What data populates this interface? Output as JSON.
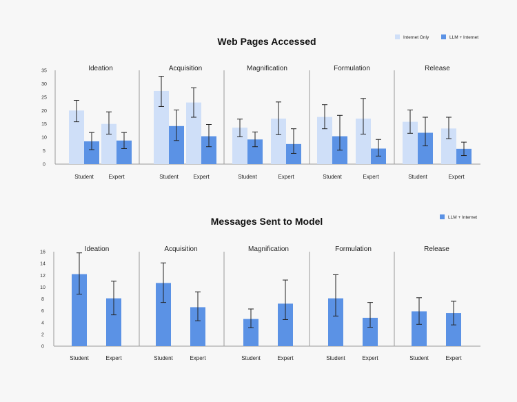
{
  "colors": {
    "internet_only": "#cfdff8",
    "llm_internet": "#5b92e5",
    "axis": "#888888",
    "text": "#111111"
  },
  "chart_data": [
    {
      "type": "bar",
      "title": "Web Pages Accessed",
      "legend": [
        "Internet Only",
        "LLM + Internet"
      ],
      "legend_position": "top-right",
      "ylim": [
        0,
        35
      ],
      "yticks": [
        0,
        5,
        10,
        15,
        20,
        25,
        30,
        35
      ],
      "panels": [
        "Ideation",
        "Acquisition",
        "Magnification",
        "Formulation",
        "Release"
      ],
      "categories": [
        "Student",
        "Expert"
      ],
      "series": [
        {
          "name": "Internet Only",
          "values": [
            [
              20,
              15
            ],
            [
              27.3,
              23
            ],
            [
              13.6,
              17
            ],
            [
              17.6,
              17
            ],
            [
              15.8,
              13.3
            ]
          ],
          "err_low": [
            [
              15.8,
              11.2
            ],
            [
              21.5,
              17.5
            ],
            [
              10.2,
              11
            ],
            [
              13.2,
              11.2
            ],
            [
              11.5,
              9.5
            ]
          ],
          "err_high": [
            [
              23.8,
              19.5
            ],
            [
              32.8,
              28.5
            ],
            [
              16.8,
              23.2
            ],
            [
              22.2,
              24.5
            ],
            [
              20.2,
              17.5
            ]
          ]
        },
        {
          "name": "LLM + Internet",
          "values": [
            [
              8.5,
              8.8
            ],
            [
              14.2,
              10.4
            ],
            [
              9.2,
              7.5
            ],
            [
              10.4,
              5.8
            ],
            [
              11.7,
              5.7
            ]
          ],
          "err_low": [
            [
              5.4,
              5.8
            ],
            [
              8.8,
              6.5
            ],
            [
              6.5,
              4
            ],
            [
              5.2,
              3
            ],
            [
              6.8,
              3.2
            ]
          ],
          "err_high": [
            [
              11.8,
              11.8
            ],
            [
              20.2,
              14.8
            ],
            [
              12,
              13.2
            ],
            [
              18.2,
              9.2
            ],
            [
              17.5,
              8.2
            ]
          ]
        }
      ]
    },
    {
      "type": "bar",
      "title": "Messages Sent to Model",
      "legend": [
        "LLM + Internet"
      ],
      "legend_position": "top-right",
      "ylim": [
        0,
        16
      ],
      "yticks": [
        0,
        2,
        4,
        6,
        8,
        10,
        12,
        14,
        16
      ],
      "panels": [
        "Ideation",
        "Acquisition",
        "Magnification",
        "Formulation",
        "Release"
      ],
      "categories": [
        "Student",
        "Expert"
      ],
      "series": [
        {
          "name": "LLM + Internet",
          "values": [
            [
              12.2,
              8.1
            ],
            [
              10.7,
              6.6
            ],
            [
              4.6,
              7.2
            ],
            [
              8.1,
              4.8
            ],
            [
              5.9,
              5.6
            ]
          ],
          "err_low": [
            [
              8.8,
              5.3
            ],
            [
              7.4,
              4.3
            ],
            [
              3.1,
              4.5
            ],
            [
              5.1,
              3.2
            ],
            [
              3.7,
              3.6
            ]
          ],
          "err_high": [
            [
              15.8,
              11
            ],
            [
              14.1,
              9.2
            ],
            [
              6.3,
              11.2
            ],
            [
              12.1,
              7.4
            ],
            [
              8.2,
              7.6
            ]
          ]
        }
      ]
    }
  ]
}
